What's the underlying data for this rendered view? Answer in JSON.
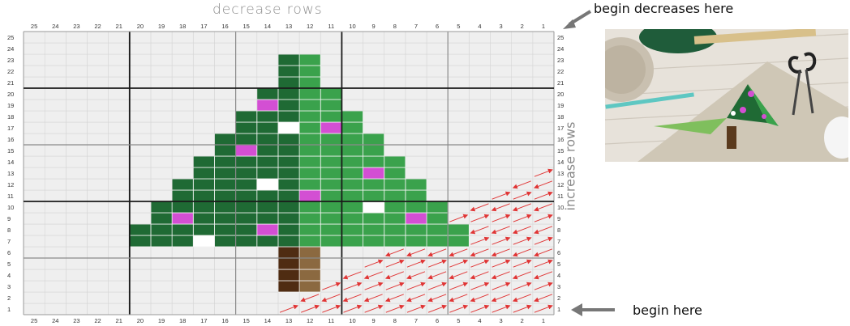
{
  "titles": {
    "top": "decrease rows",
    "side": "increase rows",
    "begin_decreases": "begin decreases here",
    "begin_here": "begin here"
  },
  "grid": {
    "columns": 25,
    "rows": 25,
    "col_numbering": "right-to-left",
    "row_numbering": "bottom-to-top",
    "heavy_lines_every": 10,
    "light_lines_every": 5
  },
  "colors": {
    "cell_bg": "#efefef",
    "dark_green": "#1f6a34",
    "light_green": "#3aa24c",
    "pink": "#d34fd3",
    "white": "#ffffff",
    "dark_brown": "#4f2c12",
    "light_brown": "#8b6940",
    "arrow": "#e03535",
    "pointer_arrow": "#777777"
  },
  "pattern": {
    "tree": [
      {
        "row": 23,
        "dark": [
          13
        ],
        "light": [
          12
        ]
      },
      {
        "row": 22,
        "dark": [
          13
        ],
        "light": [
          12
        ]
      },
      {
        "row": 21,
        "dark": [
          13
        ],
        "light": [
          12
        ]
      },
      {
        "row": 20,
        "dark": [
          14,
          13
        ],
        "light": [
          12,
          11
        ]
      },
      {
        "row": 19,
        "dark": [
          14,
          13
        ],
        "light": [
          12,
          11
        ]
      },
      {
        "row": 18,
        "dark": [
          15,
          14,
          13
        ],
        "light": [
          12,
          11,
          10
        ]
      },
      {
        "row": 17,
        "dark": [
          15,
          14,
          13
        ],
        "light": [
          12,
          11,
          10
        ]
      },
      {
        "row": 16,
        "dark": [
          16,
          15,
          14,
          13
        ],
        "light": [
          12,
          11,
          10,
          9
        ]
      },
      {
        "row": 15,
        "dark": [
          16,
          15,
          14,
          13
        ],
        "light": [
          12,
          11,
          10,
          9
        ]
      },
      {
        "row": 14,
        "dark": [
          17,
          16,
          15,
          14,
          13
        ],
        "light": [
          12,
          11,
          10,
          9,
          8
        ]
      },
      {
        "row": 13,
        "dark": [
          17,
          16,
          15,
          14,
          13
        ],
        "light": [
          12,
          11,
          10,
          9,
          8
        ]
      },
      {
        "row": 12,
        "dark": [
          18,
          17,
          16,
          15,
          14,
          13
        ],
        "light": [
          12,
          11,
          10,
          9,
          8,
          7
        ]
      },
      {
        "row": 11,
        "dark": [
          18,
          17,
          16,
          15,
          14,
          13
        ],
        "light": [
          12,
          11,
          10,
          9,
          8,
          7
        ]
      },
      {
        "row": 10,
        "dark": [
          19,
          18,
          17,
          16,
          15,
          14,
          13
        ],
        "light": [
          12,
          11,
          10,
          9,
          8,
          7,
          6
        ]
      },
      {
        "row": 9,
        "dark": [
          19,
          18,
          17,
          16,
          15,
          14,
          13
        ],
        "light": [
          12,
          11,
          10,
          9,
          8,
          7,
          6
        ]
      },
      {
        "row": 8,
        "dark": [
          20,
          19,
          18,
          17,
          16,
          15,
          14,
          13
        ],
        "light": [
          12,
          11,
          10,
          9,
          8,
          7,
          6,
          5
        ]
      },
      {
        "row": 7,
        "dark": [
          20,
          19,
          18,
          17,
          16,
          15,
          14,
          13
        ],
        "light": [
          12,
          11,
          10,
          9,
          8,
          7,
          6,
          5
        ]
      }
    ],
    "ornaments_pink": [
      [
        19,
        14
      ],
      [
        17,
        11
      ],
      [
        15,
        15
      ],
      [
        13,
        9
      ],
      [
        11,
        12
      ],
      [
        9,
        18
      ],
      [
        9,
        7
      ],
      [
        8,
        14
      ]
    ],
    "ornaments_white": [
      [
        17,
        13
      ],
      [
        12,
        14
      ],
      [
        10,
        9
      ],
      [
        7,
        17
      ]
    ],
    "trunk_dark": [
      [
        6,
        13
      ],
      [
        5,
        13
      ],
      [
        4,
        13
      ],
      [
        3,
        13
      ]
    ],
    "trunk_light": [
      [
        6,
        12
      ],
      [
        5,
        12
      ],
      [
        4,
        12
      ],
      [
        3,
        12
      ]
    ],
    "diagonal_arrows_max_row": 13
  }
}
